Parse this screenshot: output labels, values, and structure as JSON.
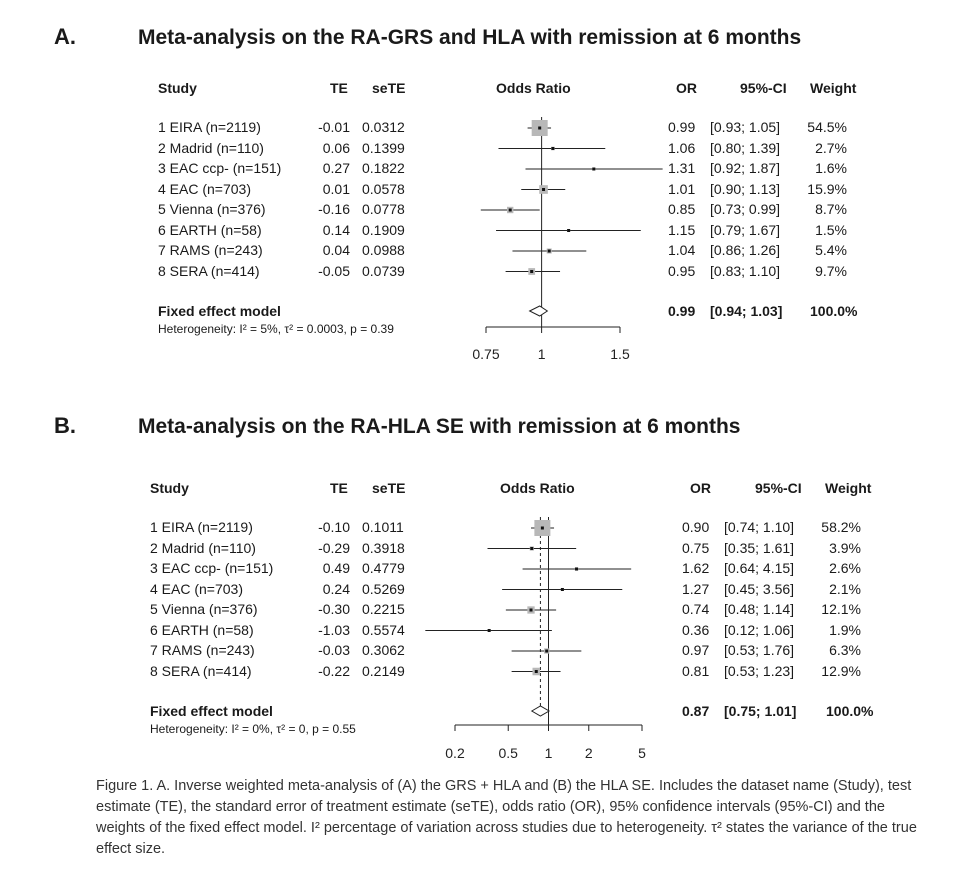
{
  "caption": "Figure 1. A. Inverse weighted meta-analysis of (A) the GRS + HLA and (B) the HLA SE. Includes the dataset name (Study), test estimate (TE), the standard error of treatment estimate (seTE), odds ratio (OR), 95% confidence intervals (95%-CI) and the weights of the fixed effect model. I² percentage of variation across studies due to heterogeneity. τ² states the variance of the true effect size.",
  "chart_data": [
    {
      "type": "forest",
      "panel": "A.",
      "title": "Meta-analysis on the RA-GRS and HLA with remission at 6 months",
      "headers": {
        "study": "Study",
        "te": "TE",
        "sete": "seTE",
        "plot": "Odds Ratio",
        "or": "OR",
        "ci": "95%-CI",
        "weight": "Weight"
      },
      "xscale": "log",
      "xlim": [
        0.75,
        1.5
      ],
      "ticks": [
        0.75,
        1,
        1.5
      ],
      "tick_labels": [
        "0.75",
        "1",
        "1.5"
      ],
      "studies": [
        {
          "label": "1 EIRA (n=2119)",
          "te": "-0.01",
          "sete": "0.0312",
          "or": 0.99,
          "lo": 0.93,
          "hi": 1.05,
          "or_text": "0.99",
          "ci_text": "[0.93; 1.05]",
          "weight": "54.5%",
          "w": 54.5
        },
        {
          "label": "2 Madrid (n=110)",
          "te": "0.06",
          "sete": "0.1399",
          "or": 1.06,
          "lo": 0.8,
          "hi": 1.39,
          "or_text": "1.06",
          "ci_text": "[0.80; 1.39]",
          "weight": "2.7%",
          "w": 2.7
        },
        {
          "label": "3 EAC ccp- (n=151)",
          "te": "0.27",
          "sete": "0.1822",
          "or": 1.31,
          "lo": 0.92,
          "hi": 1.87,
          "or_text": "1.31",
          "ci_text": "[0.92; 1.87]",
          "weight": "1.6%",
          "w": 1.6
        },
        {
          "label": "4 EAC (n=703)",
          "te": "0.01",
          "sete": "0.0578",
          "or": 1.01,
          "lo": 0.9,
          "hi": 1.13,
          "or_text": "1.01",
          "ci_text": "[0.90; 1.13]",
          "weight": "15.9%",
          "w": 15.9
        },
        {
          "label": "5 Vienna (n=376)",
          "te": "-0.16",
          "sete": "0.0778",
          "or": 0.85,
          "lo": 0.73,
          "hi": 0.99,
          "or_text": "0.85",
          "ci_text": "[0.73; 0.99]",
          "weight": "8.7%",
          "w": 8.7
        },
        {
          "label": "6 EARTH (n=58)",
          "te": "0.14",
          "sete": "0.1909",
          "or": 1.15,
          "lo": 0.79,
          "hi": 1.67,
          "or_text": "1.15",
          "ci_text": "[0.79; 1.67]",
          "weight": "1.5%",
          "w": 1.5
        },
        {
          "label": "7 RAMS (n=243)",
          "te": "0.04",
          "sete": "0.0988",
          "or": 1.04,
          "lo": 0.86,
          "hi": 1.26,
          "or_text": "1.04",
          "ci_text": "[0.86; 1.26]",
          "weight": "5.4%",
          "w": 5.4
        },
        {
          "label": "8 SERA (n=414)",
          "te": "-0.05",
          "sete": "0.0739",
          "or": 0.95,
          "lo": 0.83,
          "hi": 1.1,
          "or_text": "0.95",
          "ci_text": "[0.83; 1.10]",
          "weight": "9.7%",
          "w": 9.7
        }
      ],
      "pooled": {
        "label": "Fixed effect model",
        "or": 0.99,
        "lo": 0.94,
        "hi": 1.03,
        "or_text": "0.99",
        "ci_text": "[0.94; 1.03]",
        "weight": "100.0%"
      },
      "heterogeneity": "Heterogeneity: I² = 5%, τ² = 0.0003, p = 0.39"
    },
    {
      "type": "forest",
      "panel": "B.",
      "title": "Meta-analysis on the RA-HLA SE with remission at 6 months",
      "headers": {
        "study": "Study",
        "te": "TE",
        "sete": "seTE",
        "plot": "Odds Ratio",
        "or": "OR",
        "ci": "95%-CI",
        "weight": "Weight"
      },
      "xscale": "log",
      "xlim": [
        0.2,
        5
      ],
      "ticks": [
        0.2,
        0.5,
        1,
        2,
        5
      ],
      "tick_labels": [
        "0.2",
        "0.5",
        "1",
        "2",
        "5"
      ],
      "studies": [
        {
          "label": "1 EIRA (n=2119)",
          "te": "-0.10",
          "sete": "0.1011",
          "or": 0.9,
          "lo": 0.74,
          "hi": 1.1,
          "or_text": "0.90",
          "ci_text": "[0.74; 1.10]",
          "weight": "58.2%",
          "w": 58.2
        },
        {
          "label": "2 Madrid (n=110)",
          "te": "-0.29",
          "sete": "0.3918",
          "or": 0.75,
          "lo": 0.35,
          "hi": 1.61,
          "or_text": "0.75",
          "ci_text": "[0.35; 1.61]",
          "weight": "3.9%",
          "w": 3.9
        },
        {
          "label": "3 EAC ccp- (n=151)",
          "te": "0.49",
          "sete": "0.4779",
          "or": 1.62,
          "lo": 0.64,
          "hi": 4.15,
          "or_text": "1.62",
          "ci_text": "[0.64; 4.15]",
          "weight": "2.6%",
          "w": 2.6
        },
        {
          "label": "4 EAC (n=703)",
          "te": "0.24",
          "sete": "0.5269",
          "or": 1.27,
          "lo": 0.45,
          "hi": 3.56,
          "or_text": "1.27",
          "ci_text": "[0.45; 3.56]",
          "weight": "2.1%",
          "w": 2.1
        },
        {
          "label": "5 Vienna (n=376)",
          "te": "-0.30",
          "sete": "0.2215",
          "or": 0.74,
          "lo": 0.48,
          "hi": 1.14,
          "or_text": "0.74",
          "ci_text": "[0.48; 1.14]",
          "weight": "12.1%",
          "w": 12.1
        },
        {
          "label": "6 EARTH (n=58)",
          "te": "-1.03",
          "sete": "0.5574",
          "or": 0.36,
          "lo": 0.12,
          "hi": 1.06,
          "or_text": "0.36",
          "ci_text": "[0.12; 1.06]",
          "weight": "1.9%",
          "w": 1.9
        },
        {
          "label": "7 RAMS (n=243)",
          "te": "-0.03",
          "sete": "0.3062",
          "or": 0.97,
          "lo": 0.53,
          "hi": 1.76,
          "or_text": "0.97",
          "ci_text": "[0.53; 1.76]",
          "weight": "6.3%",
          "w": 6.3
        },
        {
          "label": "8 SERA (n=414)",
          "te": "-0.22",
          "sete": "0.2149",
          "or": 0.81,
          "lo": 0.53,
          "hi": 1.23,
          "or_text": "0.81",
          "ci_text": "[0.53; 1.23]",
          "weight": "12.9%",
          "w": 12.9
        }
      ],
      "pooled": {
        "label": "Fixed effect model",
        "or": 0.87,
        "lo": 0.75,
        "hi": 1.01,
        "or_text": "0.87",
        "ci_text": "[0.75; 1.01]",
        "weight": "100.0%"
      },
      "heterogeneity": "Heterogeneity: I² = 0%, τ² = 0, p = 0.55"
    }
  ]
}
